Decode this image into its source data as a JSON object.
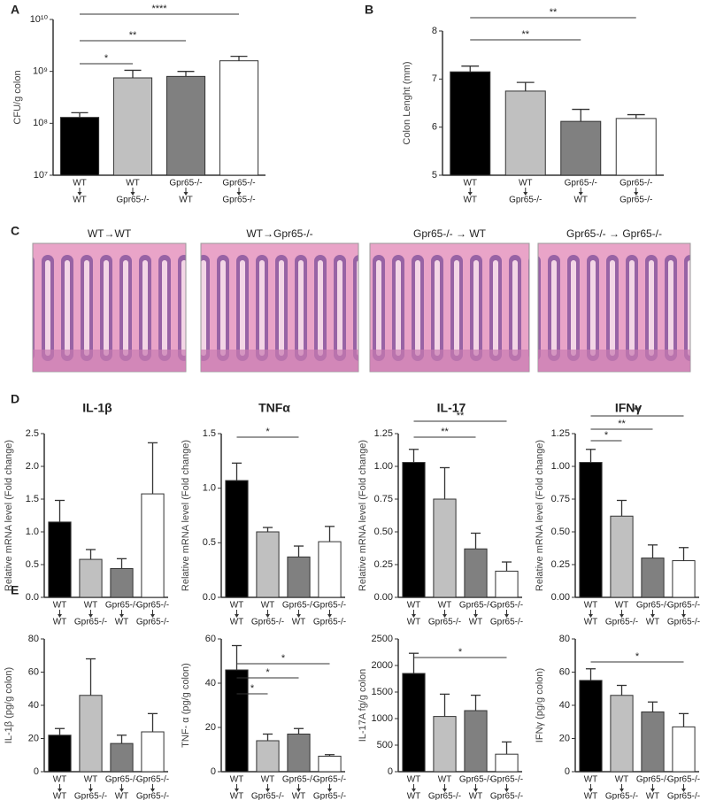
{
  "chart_data": [
    {
      "type": "bar",
      "panel": "A",
      "ylabel": "CFU/g colon",
      "log": true,
      "categories": [
        [
          "WT",
          "WT"
        ],
        [
          "WT",
          "Gpr65-/-"
        ],
        [
          "Gpr65-/-",
          "WT"
        ],
        [
          "Gpr65-/-",
          "Gpr65-/-"
        ]
      ],
      "values": [
        130000000,
        750000000,
        800000000,
        1600000000
      ],
      "errors": [
        30000000,
        300000000,
        200000000,
        350000000
      ],
      "colors": [
        "#000000",
        "#c0c0c0",
        "#808080",
        "#ffffff"
      ],
      "ylim": [
        10000000,
        10000000000
      ],
      "yticks": [
        {
          "value": 10000000,
          "label": "10⁷"
        },
        {
          "value": 100000000,
          "label": "10⁸"
        },
        {
          "value": 1000000000,
          "label": "10⁹"
        },
        {
          "value": 10000000000,
          "label": "10¹⁰"
        }
      ],
      "significance": [
        "*",
        "**",
        "****"
      ]
    },
    {
      "type": "bar",
      "panel": "B",
      "ylabel": "Colon Lenght (mm)",
      "categories": [
        [
          "WT",
          "WT"
        ],
        [
          "WT",
          "Gpr65-/-"
        ],
        [
          "Gpr65-/-",
          "WT"
        ],
        [
          "Gpr65-/-",
          "Gpr65-/-"
        ]
      ],
      "values": [
        7.15,
        6.75,
        6.12,
        6.18
      ],
      "errors": [
        0.12,
        0.18,
        0.25,
        0.08
      ],
      "colors": [
        "#000000",
        "#c0c0c0",
        "#808080",
        "#ffffff"
      ],
      "ylim": [
        5,
        8
      ],
      "yticks": [
        5,
        6,
        7,
        8
      ],
      "significance": [
        "**",
        "**"
      ]
    },
    {
      "type": "bar",
      "panel": "D",
      "title": "IL-1β",
      "ylabel": "Relative mRNA level (Fold change)",
      "categories": [
        [
          "WT",
          "WT"
        ],
        [
          "WT",
          "Gpr65-/-"
        ],
        [
          "Gpr65-/-",
          "WT"
        ],
        [
          "Gpr65-/-",
          "Gpr65-/-"
        ]
      ],
      "values": [
        1.15,
        0.58,
        0.44,
        1.58
      ],
      "errors": [
        0.33,
        0.15,
        0.15,
        0.78
      ],
      "colors": [
        "#000000",
        "#c0c0c0",
        "#808080",
        "#ffffff"
      ],
      "ylim": [
        0,
        2.5
      ],
      "yticks": [
        {
          "value": 0,
          "label": "0.0"
        },
        0.5,
        {
          "value": 1,
          "label": "1.0"
        },
        1.5,
        {
          "value": 2,
          "label": "2.0"
        },
        2.5
      ],
      "significance": []
    },
    {
      "type": "bar",
      "title": "TNFα",
      "ylabel": "Relative mRNA level (Fold change)",
      "categories": [
        [
          "WT",
          "WT"
        ],
        [
          "WT",
          "Gpr65-/-"
        ],
        [
          "Gpr65-/-",
          "WT"
        ],
        [
          "Gpr65-/-",
          "Gpr65-/-"
        ]
      ],
      "values": [
        1.07,
        0.6,
        0.37,
        0.51
      ],
      "errors": [
        0.16,
        0.04,
        0.1,
        0.14
      ],
      "colors": [
        "#000000",
        "#c0c0c0",
        "#808080",
        "#ffffff"
      ],
      "ylim": [
        0,
        1.5
      ],
      "yticks": [
        {
          "value": 0,
          "label": "0.0"
        },
        0.5,
        {
          "value": 1,
          "label": "1.0"
        },
        1.5
      ],
      "significance": [
        "*"
      ]
    },
    {
      "type": "bar",
      "title": "IL-17",
      "ylabel": "Relative mRNA level (Fold change)",
      "categories": [
        [
          "WT",
          "WT"
        ],
        [
          "WT",
          "Gpr65-/-"
        ],
        [
          "Gpr65-/-",
          "WT"
        ],
        [
          "Gpr65-/-",
          "Gpr65-/-"
        ]
      ],
      "values": [
        1.03,
        0.75,
        0.37,
        0.2
      ],
      "errors": [
        0.1,
        0.24,
        0.12,
        0.07
      ],
      "colors": [
        "#000000",
        "#c0c0c0",
        "#808080",
        "#ffffff"
      ],
      "ylim": [
        0,
        1.25
      ],
      "yticks": [
        {
          "value": 0,
          "label": "0.00"
        },
        0.25,
        {
          "value": 0.5,
          "label": "0.50"
        },
        0.75,
        {
          "value": 1,
          "label": "1.00"
        },
        1.25
      ],
      "significance": [
        "**",
        "**"
      ]
    },
    {
      "type": "bar",
      "title": "IFNγ",
      "ylabel": "Relative mRNA level (Fold change)",
      "categories": [
        [
          "WT",
          "WT"
        ],
        [
          "WT",
          "Gpr65-/-"
        ],
        [
          "Gpr65-/-",
          "WT"
        ],
        [
          "Gpr65-/-",
          "Gpr65-/-"
        ]
      ],
      "values": [
        1.03,
        0.62,
        0.3,
        0.28
      ],
      "errors": [
        0.1,
        0.12,
        0.1,
        0.1
      ],
      "colors": [
        "#000000",
        "#c0c0c0",
        "#808080",
        "#ffffff"
      ],
      "ylim": [
        0,
        1.25
      ],
      "yticks": [
        {
          "value": 0,
          "label": "0.00"
        },
        0.25,
        {
          "value": 0.5,
          "label": "0.50"
        },
        0.75,
        {
          "value": 1,
          "label": "1.00"
        },
        1.25
      ],
      "significance": [
        "*",
        "**",
        "**"
      ]
    },
    {
      "type": "bar",
      "panel": "E",
      "ylabel": "IL-1β  (pg/g colon)",
      "categories": [
        [
          "WT",
          "WT"
        ],
        [
          "WT",
          "Gpr65-/-"
        ],
        [
          "Gpr65-/-",
          "WT"
        ],
        [
          "Gpr65-/-",
          "Gpr65-/-"
        ]
      ],
      "values": [
        22,
        46,
        17,
        24
      ],
      "errors": [
        4,
        22,
        5,
        11
      ],
      "colors": [
        "#000000",
        "#c0c0c0",
        "#808080",
        "#ffffff"
      ],
      "ylim": [
        0,
        80
      ],
      "yticks": [
        0,
        20,
        40,
        60,
        80
      ],
      "significance": []
    },
    {
      "type": "bar",
      "ylabel": "TNF- α  (pg/g colon)",
      "categories": [
        [
          "WT",
          "WT"
        ],
        [
          "WT",
          "Gpr65-/-"
        ],
        [
          "Gpr65-/-",
          "WT"
        ],
        [
          "Gpr65-/-",
          "Gpr65-/-"
        ]
      ],
      "values": [
        46,
        14,
        17,
        7
      ],
      "errors": [
        11,
        3,
        2.5,
        0.7
      ],
      "colors": [
        "#000000",
        "#c0c0c0",
        "#808080",
        "#ffffff"
      ],
      "ylim": [
        0,
        60
      ],
      "yticks": [
        0,
        20,
        40,
        60
      ],
      "significance": [
        "*",
        "*",
        "*"
      ]
    },
    {
      "type": "bar",
      "ylabel": "IL-17A fg/g colon",
      "categories": [
        [
          "WT",
          "WT"
        ],
        [
          "WT",
          "Gpr65-/-"
        ],
        [
          "Gpr65-/-",
          "WT"
        ],
        [
          "Gpr65-/-",
          "Gpr65-/-"
        ]
      ],
      "values": [
        1850,
        1040,
        1150,
        330
      ],
      "errors": [
        380,
        420,
        290,
        230
      ],
      "colors": [
        "#000000",
        "#c0c0c0",
        "#808080",
        "#ffffff"
      ],
      "ylim": [
        0,
        2500
      ],
      "yticks": [
        0,
        500,
        1000,
        1500,
        2000,
        2500
      ],
      "significance": [
        "*"
      ]
    },
    {
      "type": "bar",
      "ylabel": "IFNγ  (pg/g colon)",
      "categories": [
        [
          "WT",
          "WT"
        ],
        [
          "WT",
          "Gpr65-/-"
        ],
        [
          "Gpr65-/-",
          "WT"
        ],
        [
          "Gpr65-/-",
          "Gpr65-/-"
        ]
      ],
      "values": [
        55,
        46,
        36,
        27
      ],
      "errors": [
        7,
        6,
        6,
        8
      ],
      "colors": [
        "#000000",
        "#c0c0c0",
        "#808080",
        "#ffffff"
      ],
      "ylim": [
        0,
        80
      ],
      "yticks": [
        0,
        20,
        40,
        60,
        80
      ],
      "significance": [
        "*"
      ]
    }
  ],
  "histology": {
    "panel": "C",
    "titles": [
      "WT→WT",
      "WT→Gpr65-/-",
      "Gpr65-/- → WT",
      "Gpr65-/- → Gpr65-/-"
    ]
  }
}
